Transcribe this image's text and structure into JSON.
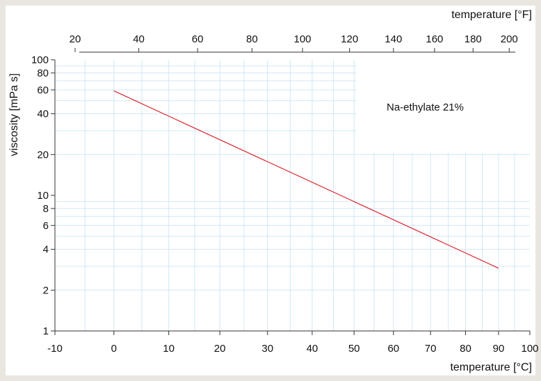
{
  "chart_data": {
    "type": "line",
    "title": "",
    "annotation": "Na-ethylate  21%",
    "x_label": "temperature [°C]",
    "x_top_label": "temperature [°F]",
    "y_label": "viscosity [mPa s]",
    "x_range": [
      -10,
      100
    ],
    "y_range": [
      1,
      100
    ],
    "y_scale": "log",
    "x_scale": "reciprocal-absolute-temperature",
    "grid": true,
    "grid_color": "#cfe8f7",
    "line_color": "#d9272e",
    "x_ticks": [
      "-10",
      "0",
      "10",
      "20",
      "30",
      "40",
      "50",
      "60",
      "70",
      "80",
      "90",
      "100"
    ],
    "x_top_ticks": [
      "20",
      "40",
      "60",
      "80",
      "100",
      "120",
      "140",
      "160",
      "180",
      "200"
    ],
    "y_ticks": [
      "1",
      "2",
      "4",
      "6",
      "8",
      "10",
      "20",
      "40",
      "60",
      "80",
      "100"
    ],
    "series": [
      {
        "x": [
          0,
          90
        ],
        "y": [
          59,
          2.9
        ]
      }
    ]
  }
}
